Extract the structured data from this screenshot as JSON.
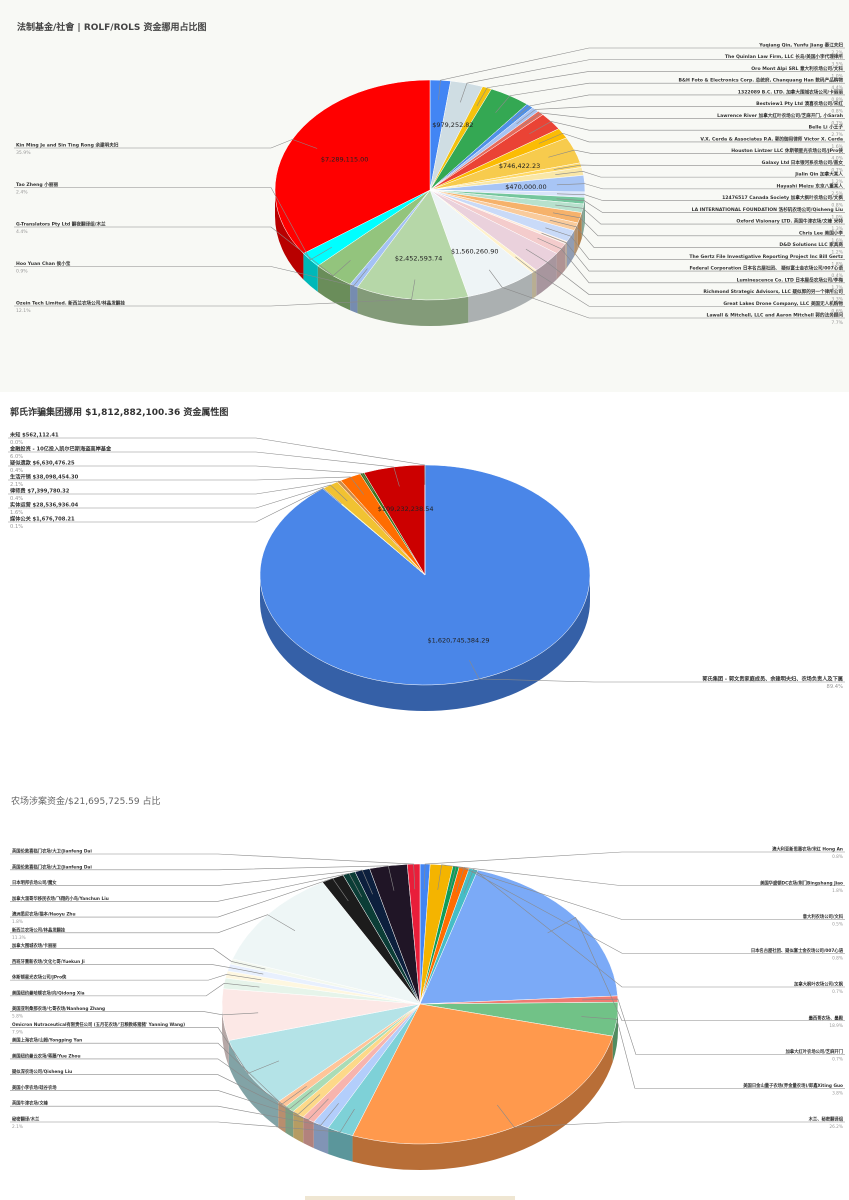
{
  "charts": [
    {
      "title": "法制基金/社會 | ROLF/ROLS 资金挪用占比图",
      "chart_data": {
        "type": "pie",
        "title": "法制基金/社會 | ROLF/ROLS 资金挪用占比图",
        "slices": [
          {
            "name": "Yuqiang Qin, Yunfu Jiang 秦江夫妇",
            "percent": "2.2%",
            "color": "#4285f4",
            "label": "",
            "value": 2.2
          },
          {
            "name": "The Quinlan Law Firm, LLC 长岛/美国小李代理律所",
            "percent": "3.5%",
            "color": "#cfdde3",
            "label": "$979,252.82",
            "value": 3.5
          },
          {
            "name": "Oro Mont Alpi SRL 意大利农场公司/文科",
            "percent": "1.0%",
            "color": "#f4c20d",
            "label": "",
            "value": 1.0
          },
          {
            "name": "B&H Foto & Electronics Corp. 总统府, Chanquang Han 数码产品购物",
            "percent": "4.4%",
            "color": "#34a853",
            "label": "",
            "value": 4.4
          },
          {
            "name": "1322089 B.C. LTD. 加拿大围城农场公司/卡丽丽",
            "percent": "0.8%",
            "color": "#4f90e6",
            "label": "",
            "value": 0.8
          },
          {
            "name": "Bestview1 Pty Ltd 澳喜农场公司/宋红",
            "percent": "0.8%",
            "color": "#a7c3f2",
            "label": "",
            "value": 0.8
          },
          {
            "name": "Lawrence River 加拿大红叶农场公司/芝麻开门, 小Sarah",
            "percent": "0.7%",
            "color": "#e66b5b",
            "label": "",
            "value": 0.7
          },
          {
            "name": "Belle Li 小王子",
            "percent": "2.7%",
            "color": "#ea4335",
            "label": "",
            "value": 2.7
          },
          {
            "name": "V.X. Cerda & Associates P.A. 郭的御用律师 Victor X. Cerda",
            "percent": "1.6%",
            "color": "#fbbc04",
            "label": "",
            "value": 1.6
          },
          {
            "name": "Houston Lintzer LLC 休斯顿星光农场公司/JPro侠",
            "percent": "4.0%",
            "color": "#f7cb4d",
            "label": "$746,422.23",
            "value": 4.0
          },
          {
            "name": "Galaxy Ltd 日本银河系农场公司/盖女",
            "percent": "0.7%",
            "color": "#ffd966",
            "label": "",
            "value": 0.7
          },
          {
            "name": "Jialin Qin 加拿大某人",
            "percent": "1.2%",
            "color": "#f9e7a7",
            "label": "",
            "value": 1.2
          },
          {
            "name": "Hayashi Meizu 东京八重某人",
            "percent": "2.5%",
            "color": "#a8c5f5",
            "label": "$470,000.00",
            "value": 2.5
          },
          {
            "name": "12476517 Canada Society 加拿大枫叶农场公司/文枫",
            "percent": "0.8%",
            "color": "#d9e4fa",
            "label": "",
            "value": 0.8
          },
          {
            "name": "LA INTERNATIONAL FOUNDATION 洛杉矶农场公司/Qisheng Liu",
            "percent": "1.0%",
            "color": "#74c69d",
            "label": "",
            "value": 1.0
          },
          {
            "name": "Oxford Visionary LTD. 英国牛津农场/文峰 米特",
            "percent": "1.3%",
            "color": "#b7e1cd",
            "label": "",
            "value": 1.3
          },
          {
            "name": "Chris Lee 美国小李",
            "percent": "1.6%",
            "color": "#f6b26b",
            "label": "",
            "value": 1.6
          },
          {
            "name": "D&D Solutions LLC 家具商",
            "percent": "1.2%",
            "color": "#f9cb9c",
            "label": "",
            "value": 1.2
          },
          {
            "name": "The Gertz File Investigative Reporting Project Inc Bill Gertz",
            "percent": "1.8%",
            "color": "#c9daf8",
            "label": "",
            "value": 1.8
          },
          {
            "name": "Federal Corporation 日本名古屋社团、 疑似富士金农场公司/007心语",
            "percent": "0.4%",
            "color": "#fde9d9",
            "label": "",
            "value": 0.4
          },
          {
            "name": "Luminescence Co. LTD 日本屋岳农场公司/李梅",
            "percent": "1.7%",
            "color": "#f4cccc",
            "label": "",
            "value": 1.7
          },
          {
            "name": "Richmond Strategic Advisors, LLC 疑似郭的另一个律所公司",
            "percent": "3.3%",
            "color": "#ead1dc",
            "label": "",
            "value": 3.3
          },
          {
            "name": "Great Lakes Drone Company, LLC 美国无人机购物",
            "percent": "0.6%",
            "color": "#fff2cc",
            "label": "",
            "value": 0.6
          },
          {
            "name": "Lawall & Mitchell, LLC and Aaron Mitchell 郭的法务顾问",
            "percent": "7.7%",
            "color": "#eef4f6",
            "label": "$1,560,260.90",
            "value": 7.7
          },
          {
            "name": "Ozein Tech Limited. 新西兰农场公司/林晶发翻挂",
            "percent": "12.1%",
            "color": "#b6d7a8",
            "label": "$2,452,593.74",
            "value": 12.1
          },
          {
            "name": "Hoo Yuan Chan 侯小宝",
            "percent": "0.9%",
            "color": "#a4c2f4",
            "label": "",
            "value": 0.9
          },
          {
            "name": "G-Translators Pty Ltd 翻夜翻译组/木兰",
            "percent": "4.4%",
            "color": "#93c47d",
            "label": "",
            "value": 4.4
          },
          {
            "name": "Tao Zheng 小丽丽",
            "percent": "2.4%",
            "color": "#00ffff",
            "label": "",
            "value": 2.4
          },
          {
            "name": "Kin Ming Je and Sin Ting Rong 余建明夫妇",
            "percent": "35.9%",
            "color": "#ff0000",
            "label": "$7,289,115.00",
            "value": 35.9
          }
        ]
      }
    },
    {
      "title": "郭氏诈骗集团挪用 $1,812,882,100.36 资金属性图",
      "chart_data": {
        "type": "pie",
        "title": "郭氏诈骗集团挪用 $1,812,882,100.36 资金属性图",
        "slices": [
          {
            "name": "郭氏集团 - 郭文贵家庭成员、余建明夫妇、农场负责人及下属",
            "percent": "89.4%",
            "color": "#4a86e8",
            "label": "$1,620,745,384.29",
            "value": 89.4
          },
          {
            "name": "媒体公关 $1,676,708.21",
            "percent": "0.1%",
            "color": "#ffff00",
            "label": "",
            "value": 0.1
          },
          {
            "name": "实体运营 $28,536,936.04",
            "percent": "1.6%",
            "color": "#f1c232",
            "label": "",
            "value": 1.6
          },
          {
            "name": "律师费 $7,399,780.32",
            "percent": "0.4%",
            "color": "#e69138",
            "label": "",
            "value": 0.4
          },
          {
            "name": "生活开销 $38,098,454.30",
            "percent": "2.1%",
            "color": "#ff6d01",
            "label": "",
            "value": 2.1
          },
          {
            "name": "疑似遗款 $6,630,476.25",
            "percent": "0.4%",
            "color": "#38761d",
            "label": "",
            "value": 0.4
          },
          {
            "name": "金融投资 - 10亿投入凯尔巴斯海盗高岸基金",
            "percent": "6.0%",
            "color": "#cc0000",
            "label": "$109,232,238.54",
            "value": 6.0
          },
          {
            "name": "未知 $562,112.41",
            "percent": "0.0%",
            "color": "#6fa8dc",
            "label": "",
            "value": 0.03
          }
        ]
      }
    },
    {
      "title": "农场涉案资金/$21,695,725.59 占比",
      "chart_data": {
        "type": "pie",
        "title": "农场涉案资金/$21,695,725.59 占比",
        "slices": [
          {
            "name": "澳大利亚新思惠农场/宋红 Hong An",
            "percent": "0.8%",
            "color": "#4285f4",
            "label": "",
            "value": 0.8
          },
          {
            "name": "美国华盛顿DC农场/荆门Bingshang Jiao",
            "percent": "1.8%",
            "color": "#f4b400",
            "label": "",
            "value": 1.8
          },
          {
            "name": "意大利农场公司/文科",
            "percent": "0.5%",
            "color": "#0f9d58",
            "label": "",
            "value": 0.5
          },
          {
            "name": "日本名古屋社团、疑似富士金农场公司/007心语",
            "percent": "0.8%",
            "color": "#ff6d01",
            "label": "",
            "value": 0.8
          },
          {
            "name": "加拿大枫叶农场公司/文枫",
            "percent": "0.7%",
            "color": "#46bdc6",
            "label": "",
            "value": 0.7
          },
          {
            "name": "墨西哥农场、墨殿",
            "percent": "18.9%",
            "color": "#7baaf7",
            "label": "",
            "value": 18.9
          },
          {
            "name": "加拿大红叶农场公司/芝麻开门",
            "percent": "0.7%",
            "color": "#f07b72",
            "label": "",
            "value": 0.7
          },
          {
            "name": "美国日金山量子农场(界金量农场)/郎鑫Xiting Guo",
            "percent": "3.8%",
            "color": "#71c287",
            "label": "",
            "value": 3.8
          },
          {
            "name": "木兰、秘密翻译组",
            "percent": "26.2%",
            "color": "#ff994d",
            "label": "",
            "value": 26.2
          },
          {
            "name": "秘密翻译/木兰",
            "percent": "2.1%",
            "color": "#7ed1d7",
            "label": "",
            "value": 2.1
          },
          {
            "name": "英国牛津农场/文峰",
            "percent": "",
            "color": "#b3cefb",
            "label": "",
            "value": 1.3
          },
          {
            "name": "美国小李农场/硅谷农场",
            "percent": "",
            "color": "#f7b4ae",
            "label": "",
            "value": 1.0
          },
          {
            "name": "疑似深农场公司/Qisheng Liu",
            "percent": "",
            "color": "#fdd989",
            "label": "",
            "value": 1.0
          },
          {
            "name": "美国纽约曼云农场/蒋藤/Yue Zhou",
            "percent": "",
            "color": "#aadcb6",
            "label": "",
            "value": 0.8
          },
          {
            "name": "美国上海农场/山姆/Yongping Yan",
            "percent": "",
            "color": "#ffc599",
            "label": "",
            "value": 0.8
          },
          {
            "name": "Omicron Nutraceutical有限责任公司 (五月花农场/'丑粮教练猪猪' Yanning Wang)",
            "percent": "7.9%",
            "color": "#b4e3e7",
            "label": "",
            "value": 7.9
          },
          {
            "name": "美国亚利桑那农场/七哥农场/Nanhong Zhang",
            "percent": "5.8%",
            "color": "#fce8e6",
            "label": "",
            "value": 5.8
          },
          {
            "name": "美国纽约曼哈顿农场/向/Qidong Xia",
            "percent": "",
            "color": "#e6f4ea",
            "label": "",
            "value": 1.2
          },
          {
            "name": "休斯顿星光农场公司/JPro侠",
            "percent": "",
            "color": "#fef7e0",
            "label": "",
            "value": 0.8
          },
          {
            "name": "西班牙重新农场/文化七哥/Yuekun Ji",
            "percent": "",
            "color": "#e8f0fe",
            "label": "",
            "value": 0.8
          },
          {
            "name": "加拿大围城农场/卡丽丽",
            "percent": "",
            "color": "#f3f8ef",
            "label": "",
            "value": 0.6
          },
          {
            "name": "新西兰农场公司/林晶发翻挂",
            "percent": "11.3%",
            "color": "#eef6f6",
            "label": "",
            "value": 11.3
          },
          {
            "name": "澳洲悉尼农场/猫本/Haoyu Zhu",
            "percent": "1.8%",
            "color": "#1c1c1c",
            "label": "",
            "value": 1.8
          },
          {
            "name": "加拿大温哥华移民农场/飞翔的小鸟/Yanchun Liu",
            "percent": "",
            "color": "#0b3d36",
            "label": "",
            "value": 1.0
          },
          {
            "name": "日本明邦农场公司/魔女",
            "percent": "",
            "color": "#0c1f3d",
            "label": "",
            "value": 1.2
          },
          {
            "name": "英国伦敦喜临门农场/大卫/Jianfeng Dai",
            "percent": "",
            "color": "#201526",
            "label": "",
            "value": 3.0
          },
          {
            "name": "英国伦敦喜临门农场/大卫/Jianfeng Dai",
            "percent": "",
            "color": "#e91e3a",
            "label": "",
            "value": 1.0
          }
        ]
      }
    }
  ]
}
